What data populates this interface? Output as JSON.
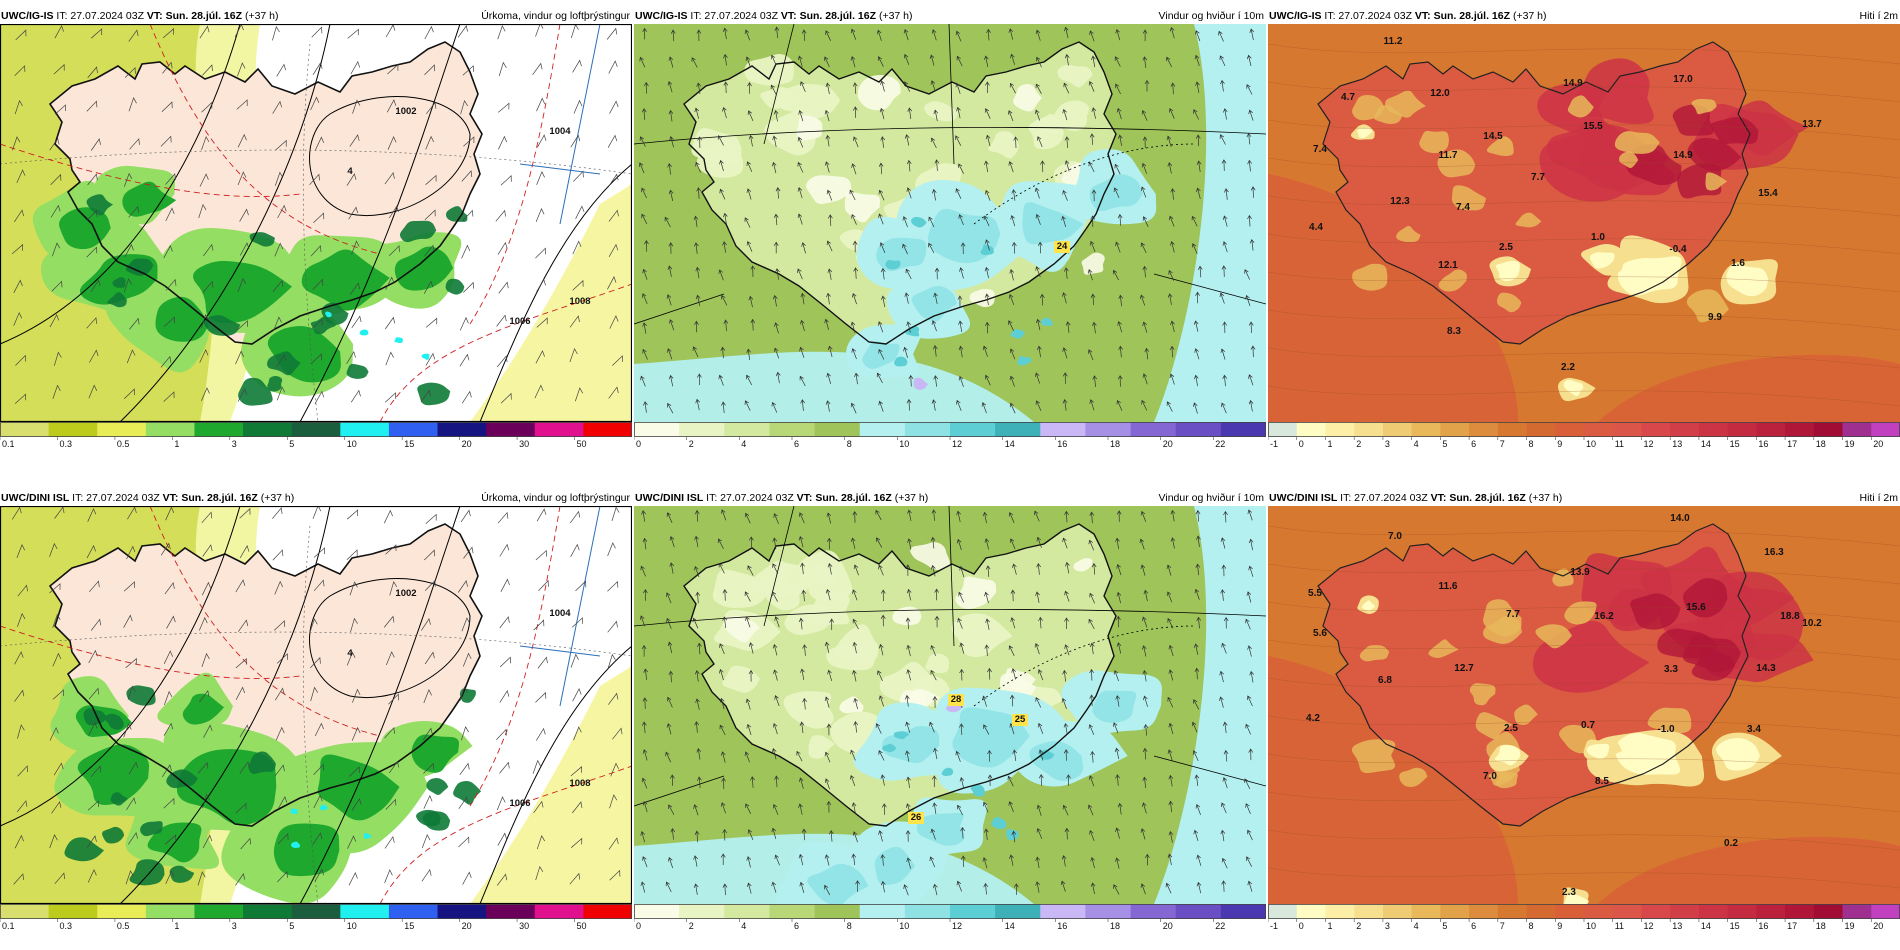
{
  "rows": [
    {
      "model": "UWC/IG-IS",
      "issue_prefix": " IT: ",
      "issue_time": "27.07.2024 03Z",
      "valid_prefix": " VT: ",
      "valid_time": "Sun. 28.júl. 16Z",
      "lead": " (+37 h)",
      "panels": [
        {
          "title": "Úrkoma, vindur og loftþrýstingur",
          "type": "precip",
          "labels": [
            "1002",
            "1004",
            "1006",
            "1008",
            "4"
          ]
        },
        {
          "title": "Vindur og hviður í 10m",
          "type": "wind",
          "labels": [
            "24"
          ]
        },
        {
          "title": "Hiti í 2m",
          "type": "temp",
          "labels": [
            "11.2",
            "12.0",
            "14.9",
            "17.0",
            "14.5",
            "15.5",
            "11.7",
            "4.7",
            "7.4",
            "7.7",
            "14.9",
            "12.3",
            "7.4",
            "15.4",
            "4.4",
            "2.5",
            "1.0",
            "-0.4",
            "12.1",
            "1.6",
            "9.9",
            "8.3",
            "2.2",
            "13.7"
          ]
        }
      ]
    },
    {
      "model": "UWC/DINI ISL",
      "issue_prefix": " IT: ",
      "issue_time": "27.07.2024 03Z",
      "valid_prefix": " VT: ",
      "valid_time": "Sun. 28.júl. 16Z",
      "lead": " (+37 h)",
      "panels": [
        {
          "title": "Úrkoma, vindur og loftþrýstingur",
          "type": "precip",
          "labels": [
            "1002",
            "1004",
            "1006",
            "1008",
            "4"
          ]
        },
        {
          "title": "Vindur og hviður í 10m",
          "type": "wind",
          "labels": [
            "28",
            "25",
            "26"
          ]
        },
        {
          "title": "Hiti í 2m",
          "type": "temp",
          "labels": [
            "7.0",
            "14.0",
            "16.3",
            "5.5",
            "11.6",
            "13.9",
            "15.6",
            "18.8",
            "10.2",
            "7.7",
            "16.2",
            "5.6",
            "12.7",
            "14.3",
            "6.8",
            "3.3",
            "4.2",
            "2.5",
            "0.7",
            "-1.0",
            "3.4",
            "7.0",
            "8.5",
            "0.2",
            "2.3"
          ]
        }
      ]
    }
  ],
  "colorbars": {
    "precip": {
      "labels": [
        "0.1",
        "0.3",
        "0.5",
        "1",
        "3",
        "5",
        "10",
        "15",
        "20",
        "30",
        "50"
      ],
      "colors": [
        "#d9df6e",
        "#bccb1c",
        "#e8ec56",
        "#94de63",
        "#1ea82d",
        "#0e7a36",
        "#1b5e3d",
        "#20f0f0",
        "#3060f0",
        "#151480",
        "#6a005a",
        "#e0108f",
        "#f00000"
      ]
    },
    "wind": {
      "labels": [
        "0",
        "2",
        "4",
        "6",
        "8",
        "10",
        "12",
        "14",
        "16",
        "18",
        "20",
        "22"
      ],
      "colors": [
        "#fafce8",
        "#e9f4c4",
        "#d3e9a0",
        "#b8d877",
        "#9ec45a",
        "#b4f0f0",
        "#8ee2e4",
        "#5dcfd4",
        "#3eb0b8",
        "#c9b8f5",
        "#a690e6",
        "#8567d3",
        "#6a4ec3",
        "#4a38b0"
      ]
    },
    "temp": {
      "labels": [
        "-1",
        "0",
        "1",
        "2",
        "3",
        "4",
        "5",
        "6",
        "7",
        "8",
        "9",
        "10",
        "11",
        "12",
        "13",
        "14",
        "15",
        "16",
        "17",
        "18",
        "19",
        "20"
      ],
      "colors": [
        "#d8e8dc",
        "#fffcc4",
        "#fdf0a6",
        "#f6e090",
        "#efcc74",
        "#e8b85a",
        "#e2a24a",
        "#dc8c3c",
        "#d77830",
        "#d56a30",
        "#d85f38",
        "#da5a42",
        "#db5548",
        "#d8484a",
        "#d23e48",
        "#cc3344",
        "#c42a40",
        "#bb203c",
        "#b01638",
        "#a00c34",
        "#a03090",
        "#c040c0"
      ]
    }
  }
}
